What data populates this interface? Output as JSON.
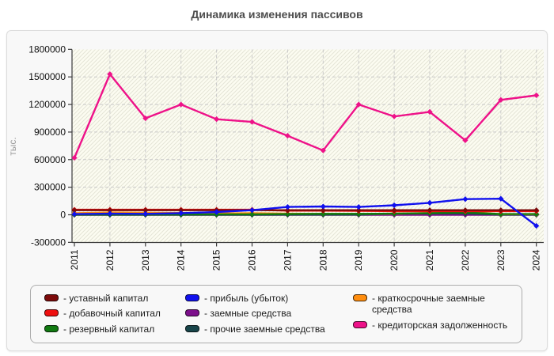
{
  "page": {
    "title": "Динамика изменения пассивов"
  },
  "legend_prefix": "- ",
  "chart_data": {
    "type": "line",
    "title": "Динамика изменения пассивов",
    "xlabel": "",
    "ylabel": "тыс.",
    "x": [
      "2011",
      "2012",
      "2013",
      "2014",
      "2015",
      "2016",
      "2017",
      "2018",
      "2019",
      "2020",
      "2021",
      "2022",
      "2023",
      "2024"
    ],
    "ylim": [
      -300000,
      1800000
    ],
    "yticks": [
      1800000,
      1500000,
      1200000,
      900000,
      600000,
      300000,
      0,
      -300000
    ],
    "grid": true,
    "legend_position": "bottom",
    "legend_columns": [
      3,
      3,
      2
    ],
    "series": [
      {
        "name": "уставный капитал",
        "color": "#7d0b0b",
        "z": 6,
        "values": [
          50000,
          50000,
          50000,
          50000,
          50000,
          50000,
          50000,
          50000,
          50000,
          50000,
          50000,
          50000,
          50000,
          50000
        ]
      },
      {
        "name": "добавочный капитал",
        "color": "#ee0f0f",
        "z": 5,
        "values": [
          55000,
          55000,
          55000,
          55000,
          55000,
          55000,
          45000,
          45000,
          43000,
          40000,
          40000,
          40000,
          40000,
          40000
        ]
      },
      {
        "name": "резервный капитал",
        "color": "#117a11",
        "z": 4,
        "values": [
          3000,
          3000,
          3000,
          3000,
          4000,
          5000,
          8000,
          10000,
          10000,
          12000,
          18000,
          25000,
          8000,
          8000
        ]
      },
      {
        "name": "прибыль (убыток)",
        "color": "#1111ee",
        "z": 7,
        "values": [
          8000,
          12000,
          10000,
          17000,
          30000,
          50000,
          85000,
          90000,
          85000,
          103000,
          130000,
          170000,
          175000,
          -120000
        ]
      },
      {
        "name": "заемные средства",
        "color": "#7c0f8b",
        "z": 1,
        "values": [
          0,
          0,
          0,
          0,
          0,
          0,
          0,
          0,
          0,
          0,
          0,
          0,
          0,
          0
        ]
      },
      {
        "name": "прочие заемные средства",
        "color": "#18454a",
        "z": 2,
        "values": [
          1000,
          1000,
          1000,
          1000,
          1000,
          1000,
          2000,
          2000,
          2000,
          12000,
          15000,
          15000,
          2000,
          2000
        ]
      },
      {
        "name": "краткосрочные заемные средства",
        "color": "#ff8d0e",
        "z": 3,
        "values": [
          18000,
          25000,
          22000,
          20000,
          15000,
          18000,
          12000,
          10000,
          10000,
          12000,
          20000,
          35000,
          6000,
          6000
        ]
      },
      {
        "name": "кредиторская задолженность",
        "color": "#ee1289",
        "z": 8,
        "values": [
          620000,
          1530000,
          1050000,
          1200000,
          1040000,
          1010000,
          860000,
          700000,
          1200000,
          1070000,
          1120000,
          810000,
          1250000,
          1300000
        ]
      }
    ],
    "plot_style": {
      "background": "#fcfcf1",
      "hatch_color": "#e4e4d6",
      "grid_color": "#c9c9c9",
      "axis_color": "#3c3c3c",
      "tick_label_color": "#111111",
      "axis_title_color": "#999999"
    }
  }
}
